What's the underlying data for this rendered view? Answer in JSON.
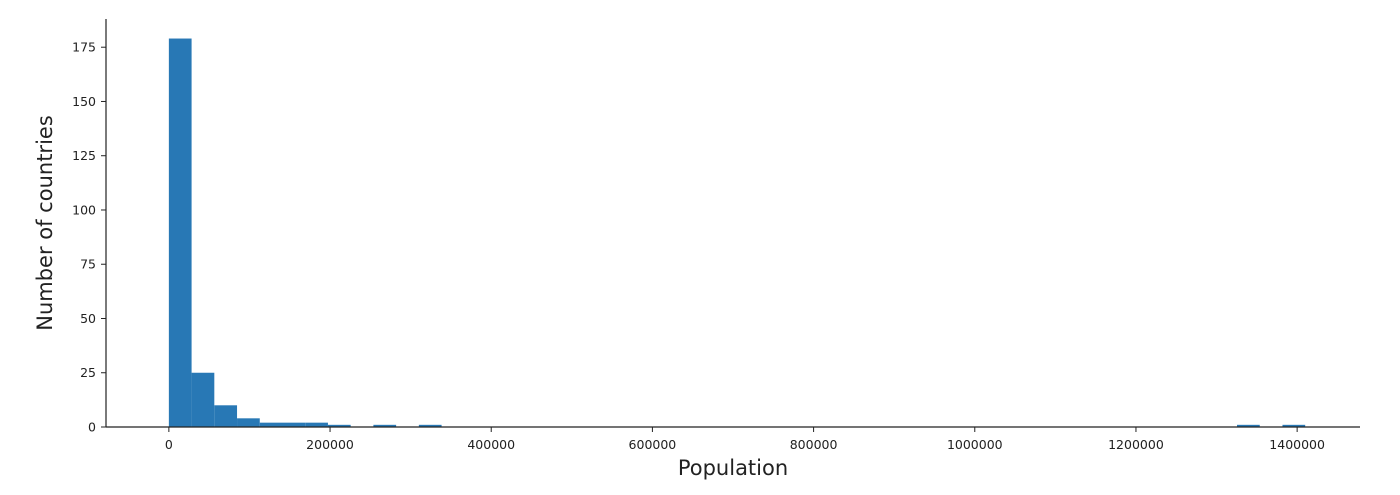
{
  "chart_data": {
    "type": "bar",
    "subtype": "histogram",
    "xlabel": "Population",
    "ylabel": "Number of countries",
    "xlim": [
      -78000,
      1478000
    ],
    "ylim": [
      0,
      188
    ],
    "xticks": [
      0,
      200000,
      400000,
      600000,
      800000,
      1000000,
      1200000,
      1400000
    ],
    "xtick_labels": [
      "0",
      "200000",
      "400000",
      "600000",
      "800000",
      "1000000",
      "1200000",
      "1400000"
    ],
    "yticks": [
      0,
      25,
      50,
      75,
      100,
      125,
      150,
      175
    ],
    "ytick_labels": [
      "0",
      "25",
      "50",
      "75",
      "100",
      "125",
      "150",
      "175"
    ],
    "bin_start": 0,
    "bin_width": 28200,
    "values": [
      179,
      25,
      10,
      4,
      2,
      2,
      2,
      1,
      0,
      1,
      0,
      1,
      0,
      0,
      0,
      0,
      0,
      0,
      0,
      0,
      0,
      0,
      0,
      0,
      0,
      0,
      0,
      0,
      0,
      0,
      0,
      0,
      0,
      0,
      0,
      0,
      0,
      0,
      0,
      0,
      0,
      0,
      0,
      0,
      0,
      0,
      0,
      1,
      0,
      1
    ],
    "bar_color": "#2878b5",
    "grid": false,
    "legend": "none"
  }
}
